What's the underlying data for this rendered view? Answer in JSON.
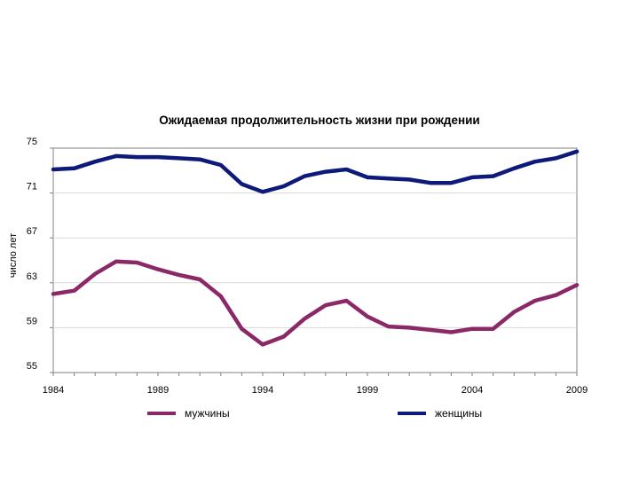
{
  "chart_data": {
    "type": "line",
    "title": "Ожидаемая продолжительность жизни при рождении",
    "xlabel": "",
    "ylabel": "число лет",
    "xlim": [
      1984,
      2009
    ],
    "ylim": [
      55,
      75
    ],
    "yticks": [
      55,
      59,
      63,
      67,
      71,
      75
    ],
    "xticks": [
      1984,
      1989,
      1994,
      1999,
      2004,
      2009
    ],
    "grid": "horizontal",
    "legend_position": "bottom",
    "x": [
      1984,
      1985,
      1986,
      1987,
      1988,
      1989,
      1990,
      1991,
      1992,
      1993,
      1994,
      1995,
      1996,
      1997,
      1998,
      1999,
      2000,
      2001,
      2002,
      2003,
      2004,
      2005,
      2006,
      2007,
      2008,
      2009
    ],
    "series": [
      {
        "name": "мужчины",
        "color": "#8b2868",
        "values": [
          62.0,
          62.3,
          63.8,
          64.9,
          64.8,
          64.2,
          63.7,
          63.3,
          61.8,
          58.9,
          57.5,
          58.2,
          59.8,
          61.0,
          61.4,
          60.0,
          59.1,
          59.0,
          58.8,
          58.6,
          58.9,
          58.9,
          60.4,
          61.4,
          61.9,
          62.8
        ]
      },
      {
        "name": "женщины",
        "color": "#0d1a7a",
        "values": [
          73.1,
          73.2,
          73.8,
          74.3,
          74.2,
          74.2,
          74.1,
          74.0,
          73.5,
          71.8,
          71.1,
          71.6,
          72.5,
          72.9,
          73.1,
          72.4,
          72.3,
          72.2,
          71.9,
          71.9,
          72.4,
          72.5,
          73.2,
          73.8,
          74.1,
          74.7
        ]
      }
    ]
  },
  "colors": {
    "axis": "#808080",
    "grid": "#d9d9d9"
  }
}
